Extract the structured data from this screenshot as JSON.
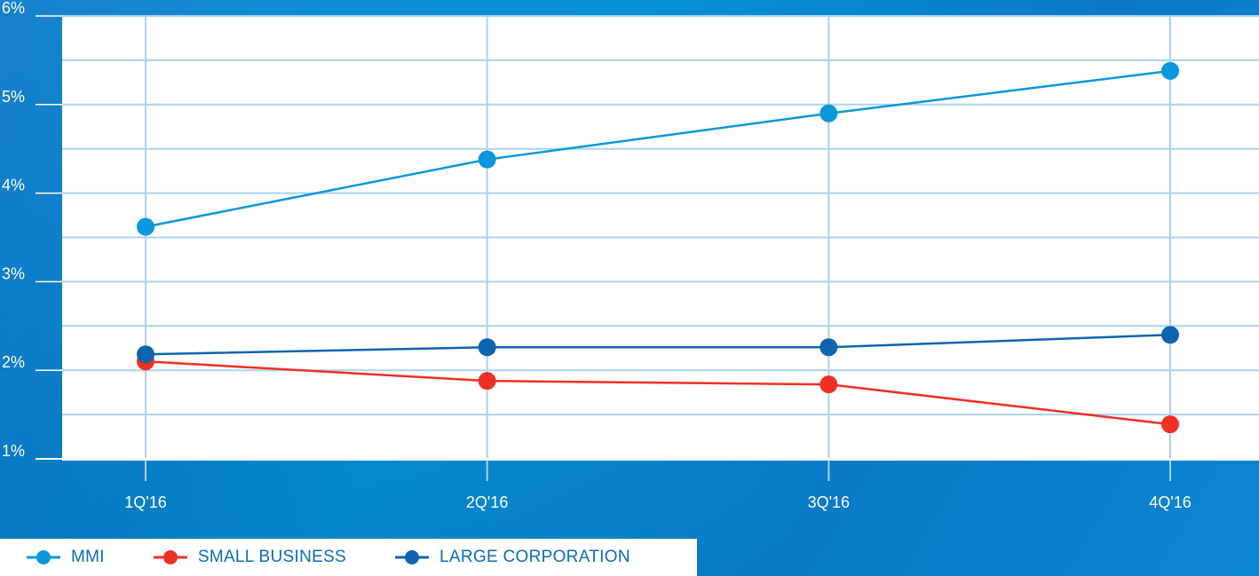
{
  "chart_data": {
    "type": "line",
    "categories": [
      "1Q'16",
      "2Q'16",
      "3Q'16",
      "4Q'16"
    ],
    "y_ticks": [
      "1%",
      "2%",
      "3%",
      "4%",
      "5%",
      "6%"
    ],
    "ylim": [
      1,
      6
    ],
    "grid": true,
    "legend_position": "bottom-left",
    "series": [
      {
        "name": "MMI",
        "color": "#0a97dc",
        "values": [
          3.62,
          4.38,
          4.9,
          5.38
        ]
      },
      {
        "name": "SMALL BUSINESS",
        "color": "#ef3024",
        "values": [
          2.1,
          1.88,
          1.84,
          1.39
        ]
      },
      {
        "name": "LARGE CORPORATION",
        "color": "#0d64b0",
        "values": [
          2.18,
          2.26,
          2.26,
          2.4
        ]
      }
    ]
  }
}
